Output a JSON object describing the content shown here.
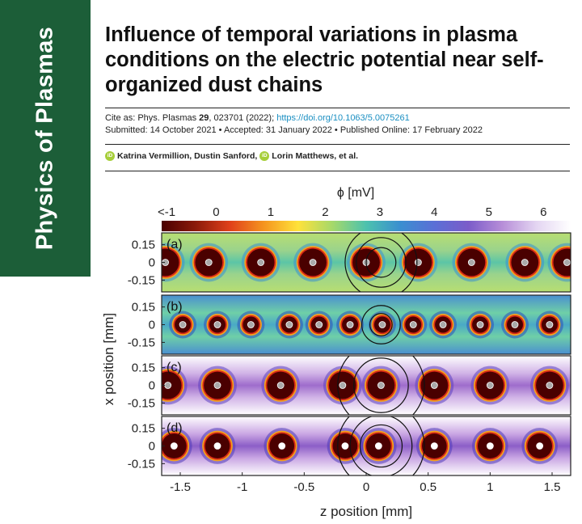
{
  "journal": {
    "name": "Physics of Plasmas",
    "color": "#1c5e38"
  },
  "article": {
    "title": "Influence of temporal variations in plasma conditions on the electric potential near self-organized dust chains",
    "cite_prefix": "Cite as: Phys. Plasmas ",
    "volume": "29",
    "cite_rest": ", 023701 (2022); ",
    "doi": "https://doi.org/10.1063/5.0075261",
    "dates": "Submitted: 14 October 2021 • Accepted: 31 January 2022 • Published Online: 17 February 2022",
    "author_1": "Katrina Vermillion, Dustin Sanford,",
    "author_2": "Lorin Matthews, et al.",
    "orcid_icon_text": "iD"
  },
  "chart_data": {
    "type": "heatmap",
    "colorbar": {
      "label": "ϕ [mV]",
      "tick_labels": [
        "<-1",
        "0",
        "1",
        "2",
        "3",
        "4",
        "5",
        "6"
      ],
      "ticks": [
        -1,
        0,
        1,
        2,
        3,
        4,
        5,
        6
      ],
      "range": [
        -1,
        6.5
      ],
      "colors": [
        "#4a0000",
        "#8b1a0a",
        "#e0401a",
        "#f5951f",
        "#ffe23a",
        "#a6d96a",
        "#4cc2ae",
        "#3a8fd0",
        "#5b6fd6",
        "#7b5cc9",
        "#b78ed8",
        "#e4d6f2",
        "#ffffff"
      ]
    },
    "xlabel": "z position [mm]",
    "ylabel": "x position [mm]",
    "xlim": [
      -1.65,
      1.65
    ],
    "x_ticks": [
      -1.5,
      -1,
      -0.5,
      0,
      0.5,
      1,
      1.5
    ],
    "x_tick_labels": [
      "-1.5",
      "-1",
      "-0.5",
      "0",
      "0.5",
      "1",
      "1.5"
    ],
    "y_ticks": [
      0.15,
      0,
      -0.15
    ],
    "y_tick_labels": [
      "0.15",
      "0",
      "-0.15"
    ],
    "ylim": [
      -0.25,
      0.25
    ],
    "panels": [
      {
        "label": "(a)",
        "background": [
          "#5cc5a6",
          "#9ad38c",
          "#b8de72"
        ],
        "dust_z": [
          -1.62,
          -1.27,
          -0.85,
          -0.43,
          0.0,
          0.42,
          0.85,
          1.28,
          1.62
        ],
        "grain_radius": 0.11,
        "rings": [
          0.12,
          0.2,
          0.29
        ],
        "ring_center": 0.12,
        "halo": "#3b8fd0",
        "dot": "#aaaaaa"
      },
      {
        "label": "(b)",
        "background": [
          "#4aa9c6",
          "#6fcfa7",
          "#4a8fd0"
        ],
        "dust_z": [
          -1.48,
          -1.2,
          -0.93,
          -0.62,
          -0.38,
          -0.13,
          0.13,
          0.38,
          0.62,
          0.92,
          1.2,
          1.48
        ],
        "grain_radius": 0.065,
        "rings": [
          0.09,
          0.155
        ],
        "ring_center": 0.12,
        "halo": "#2b4fb8",
        "dot": "#aaaaaa"
      },
      {
        "label": "(c)",
        "background": [
          "#9e6ccc",
          "#d0b2e6",
          "#ffffff"
        ],
        "dust_z": [
          -1.6,
          -1.2,
          -0.69,
          -0.19,
          0.12,
          0.55,
          1.0,
          1.48
        ],
        "grain_radius": 0.11,
        "rings": [
          0.22,
          0.35
        ],
        "ring_center": 0.12,
        "halo": "#5c3fc0",
        "dot": "#aaaaaa"
      },
      {
        "label": "(d)",
        "background": [
          "#8c5ec7",
          "#c9a5e3",
          "#ffffff"
        ],
        "dust_z": [
          -1.55,
          -1.2,
          -0.68,
          -0.17,
          0.1,
          0.55,
          1.0,
          1.4
        ],
        "grain_radius": 0.1,
        "rings": [
          0.17,
          0.25,
          0.35
        ],
        "ring_center": 0.12,
        "halo": "#4f3ab8",
        "dot": "#ffffff"
      }
    ]
  }
}
